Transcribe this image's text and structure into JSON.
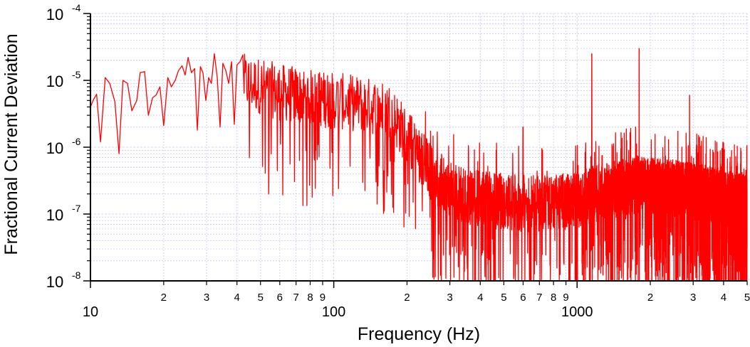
{
  "chart_data": {
    "type": "line",
    "xlabel": "Frequency (Hz)",
    "ylabel": "Fractional Current Deviation",
    "x_scale": "log",
    "y_scale": "log",
    "xlim": [
      10,
      5000
    ],
    "ylim": [
      1e-08,
      0.0001
    ],
    "grid": true,
    "legend": "none",
    "colors": {
      "series": "#ff0000",
      "grid": "#c8c8f0",
      "axis": "#000000"
    },
    "x_major_ticks": [
      {
        "value": 10,
        "label": "10"
      },
      {
        "value": 100,
        "label": "100"
      },
      {
        "value": 1000,
        "label": "1000"
      }
    ],
    "x_minor_ticks": [
      {
        "value": 20,
        "label": "2"
      },
      {
        "value": 30,
        "label": "3"
      },
      {
        "value": 40,
        "label": "4"
      },
      {
        "value": 50,
        "label": "5"
      },
      {
        "value": 60,
        "label": "6"
      },
      {
        "value": 70,
        "label": "7"
      },
      {
        "value": 80,
        "label": "8"
      },
      {
        "value": 90,
        "label": "9"
      },
      {
        "value": 200,
        "label": "2"
      },
      {
        "value": 300,
        "label": "3"
      },
      {
        "value": 400,
        "label": "4"
      },
      {
        "value": 500,
        "label": "5"
      },
      {
        "value": 600,
        "label": "6"
      },
      {
        "value": 700,
        "label": "7"
      },
      {
        "value": 800,
        "label": "8"
      },
      {
        "value": 900,
        "label": "9"
      },
      {
        "value": 2000,
        "label": "2"
      },
      {
        "value": 3000,
        "label": "3"
      },
      {
        "value": 4000,
        "label": "4"
      },
      {
        "value": 5000,
        "label": "5"
      }
    ],
    "y_major_ticks": [
      {
        "value": 0.0001,
        "base": "10",
        "exp": "-4"
      },
      {
        "value": 1e-05,
        "base": "10",
        "exp": "-5"
      },
      {
        "value": 1e-06,
        "base": "10",
        "exp": "-6"
      },
      {
        "value": 1e-07,
        "base": "10",
        "exp": "-7"
      },
      {
        "value": 1e-08,
        "base": "10",
        "exp": "-8"
      }
    ],
    "series": [
      {
        "envelope": [
          [
            10,
            6e-06
          ],
          [
            12,
            6e-06
          ],
          [
            15,
            7e-06
          ],
          [
            20,
            9e-06
          ],
          [
            25,
            1.1e-05
          ],
          [
            30,
            1e-05
          ],
          [
            40,
            9e-06
          ],
          [
            50,
            7.5e-06
          ],
          [
            60,
            6e-06
          ],
          [
            80,
            5e-06
          ],
          [
            100,
            4.5e-06
          ],
          [
            130,
            4e-06
          ],
          [
            170,
            3.2e-06
          ],
          [
            200,
            1.3e-06
          ],
          [
            220,
            8e-07
          ],
          [
            250,
            4e-07
          ],
          [
            300,
            2e-07
          ],
          [
            400,
            1.5e-07
          ],
          [
            600,
            1.3e-07
          ],
          [
            800,
            1.3e-07
          ],
          [
            1000,
            1.5e-07
          ],
          [
            1300,
            2e-07
          ],
          [
            1800,
            2.5e-07
          ],
          [
            2500,
            2.2e-07
          ],
          [
            3500,
            1.8e-07
          ],
          [
            5000,
            1.3e-07
          ]
        ],
        "peaks": [
          {
            "x": 1150,
            "y": 2.5e-05
          },
          {
            "x": 1800,
            "y": 3e-05
          },
          {
            "x": 2900,
            "y": 6e-06
          },
          {
            "x": 600,
            "y": 2e-06
          },
          {
            "x": 1740,
            "y": 2e-06
          }
        ],
        "low_freq_points": [
          [
            10.0,
            4e-06
          ],
          [
            10.3,
            5.2e-06
          ],
          [
            10.6,
            6.2e-06
          ],
          [
            11.0,
            1.2e-06
          ],
          [
            11.5,
            1.1e-05
          ],
          [
            12.0,
            9e-06
          ],
          [
            12.6,
            4.8e-06
          ],
          [
            13.1,
            8e-07
          ],
          [
            13.6,
            1e-05
          ],
          [
            14.2,
            9e-06
          ],
          [
            14.8,
            3.5e-06
          ],
          [
            15.5,
            5e-06
          ],
          [
            16.0,
            1.3e-05
          ],
          [
            16.7,
            1.35e-05
          ],
          [
            17.3,
            3e-06
          ],
          [
            18.0,
            5.5e-06
          ],
          [
            18.6,
            6e-06
          ],
          [
            19.3,
            8e-06
          ],
          [
            20.0,
            2.1e-06
          ],
          [
            20.8,
            1.1e-05
          ],
          [
            21.5,
            8e-06
          ],
          [
            22.3,
            1e-05
          ],
          [
            23.0,
            1.4e-05
          ],
          [
            23.8,
            1.65e-05
          ],
          [
            24.5,
            1.2e-05
          ],
          [
            25.2,
            2.2e-05
          ],
          [
            26.0,
            1.3e-05
          ],
          [
            26.8,
            1.5e-05
          ],
          [
            27.5,
            1.8e-06
          ],
          [
            28.3,
            1.6e-05
          ],
          [
            29.0,
            1.3e-05
          ],
          [
            29.8,
            5e-06
          ],
          [
            30.6,
            1.1e-05
          ],
          [
            31.4,
            9e-06
          ],
          [
            32.3,
            2.5e-05
          ],
          [
            33.2,
            1.1e-05
          ],
          [
            34.1,
            2e-06
          ],
          [
            35.0,
            1.8e-05
          ],
          [
            36.0,
            1.4e-05
          ],
          [
            37.0,
            9e-06
          ],
          [
            38.0,
            1.9e-05
          ],
          [
            39.0,
            2.2e-06
          ],
          [
            40.0,
            1.7e-05
          ],
          [
            41.2,
            1.9e-05
          ],
          [
            42.3,
            2.4e-05
          ]
        ]
      }
    ]
  }
}
